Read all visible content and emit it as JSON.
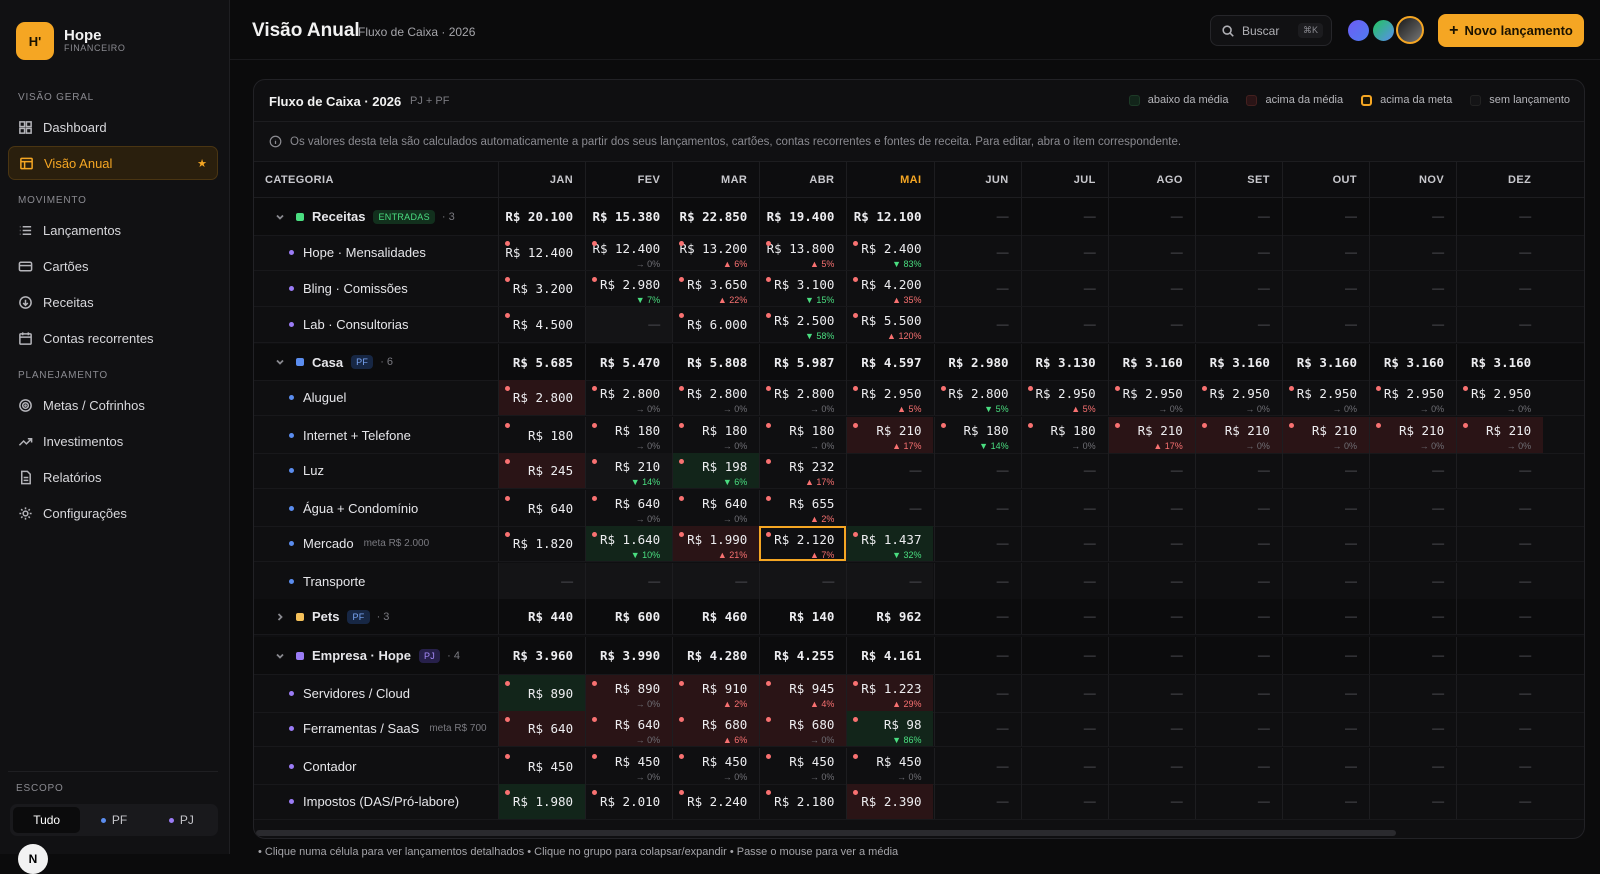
{
  "sidebar": {
    "logo": "H'",
    "brand": "Hope",
    "brand_sub": "FINANCEIRO",
    "sections": {
      "geral": "VISÃO GERAL",
      "movimento": "MOVIMENTO",
      "planejamento": "PLANEJAMENTO"
    },
    "items": {
      "dashboard": "Dashboard",
      "visao": "Visão Anual",
      "lanc": "Lançamentos",
      "cartoes": "Cartões",
      "receitas": "Receitas",
      "contas": "Contas recorrentes",
      "metas": "Metas / Cofrinhos",
      "invest": "Investimentos",
      "relat": "Relatórios",
      "config": "Configurações"
    },
    "scope_label": "ESCOPO",
    "scope": {
      "all": "Tudo",
      "pf": "PF",
      "pj": "PJ"
    },
    "avatar": "N"
  },
  "header": {
    "title": "Visão Anual",
    "subtitle": "Fluxo de Caixa · 2026",
    "search": "Buscar",
    "kbd": "⌘K",
    "new_btn": "Novo lançamento"
  },
  "card": {
    "title": "Fluxo de Caixa · 2026",
    "tag": "PJ + PF",
    "legend": {
      "abaixo": "abaixo da média",
      "acima": "acima da média",
      "meta": "acima da meta",
      "sem": "sem lançamento"
    },
    "info": "Os valores desta tela são calculados automaticamente a partir dos seus lançamentos, cartões, contas recorrentes e fontes de receita. Para editar, abra o item correspondente.",
    "col_cat": "CATEGORIA",
    "months": [
      "JAN",
      "FEV",
      "MAR",
      "ABR",
      "MAI",
      "JUN",
      "JUL",
      "AGO",
      "SET",
      "OUT",
      "NOV",
      "DEZ"
    ]
  },
  "rows": [
    {
      "type": "grp",
      "label": "Receitas",
      "color": "#4ade80",
      "badge": "ENTRADAS",
      "bclass": "b-in",
      "count": "· 3",
      "vals": [
        "R$ 20.100",
        "R$ 15.380",
        "R$ 22.850",
        "R$ 19.400",
        "R$ 12.100",
        "—",
        "—",
        "—",
        "—",
        "—",
        "—",
        "—"
      ]
    },
    {
      "type": "sub",
      "label": "Hope · Mensalidades",
      "color": "#9b7cf6",
      "vals": [
        "R$ 12.400",
        "R$ 12.400",
        "R$ 13.200",
        "R$ 13.800",
        "R$ 2.400"
      ],
      "subs": [
        "",
        "→ 0%",
        "▲ 6%",
        "▲ 5%",
        "▼ 83%"
      ]
    },
    {
      "type": "sub",
      "label": "Bling · Comissões",
      "color": "#9b7cf6",
      "vals": [
        "R$ 3.200",
        "R$ 2.980",
        "R$ 3.650",
        "R$ 3.100",
        "R$ 4.200"
      ],
      "subs": [
        "",
        "▼ 7%",
        "▲ 22%",
        "▼ 15%",
        "▲ 35%"
      ]
    },
    {
      "type": "sub",
      "label": "Lab · Consultorias",
      "color": "#9b7cf6",
      "vals": [
        "R$ 4.500",
        "—",
        "R$ 6.000",
        "R$ 2.500",
        "R$ 5.500"
      ],
      "subs": [
        "",
        "",
        "",
        "▼ 58%",
        "▲ 120%"
      ]
    },
    {
      "type": "grp",
      "label": "Casa",
      "color": "#5b8def",
      "badge": "PF",
      "bclass": "b-pf",
      "count": "· 6",
      "vals": [
        "R$ 5.685",
        "R$ 5.470",
        "R$ 5.808",
        "R$ 5.987",
        "R$ 4.597",
        "R$ 2.980",
        "R$ 3.130",
        "R$ 3.160",
        "R$ 3.160",
        "R$ 3.160",
        "R$ 3.160",
        "R$ 3.160"
      ]
    },
    {
      "type": "sub",
      "label": "Aluguel",
      "color": "#5b8def",
      "vals": [
        "R$ 2.800",
        "R$ 2.800",
        "R$ 2.800",
        "R$ 2.800",
        "R$ 2.950",
        "R$ 2.800",
        "R$ 2.950",
        "R$ 2.950",
        "R$ 2.950",
        "R$ 2.950",
        "R$ 2.950",
        "R$ 2.950"
      ],
      "subs": [
        "",
        "→ 0%",
        "→ 0%",
        "→ 0%",
        "▲ 5%",
        "▼ 5%",
        "▲ 5%",
        "→ 0%",
        "→ 0%",
        "→ 0%",
        "→ 0%",
        "→ 0%"
      ]
    },
    {
      "type": "sub",
      "label": "Internet + Telefone",
      "color": "#5b8def",
      "vals": [
        "R$ 180",
        "R$ 180",
        "R$ 180",
        "R$ 180",
        "R$ 210",
        "R$ 180",
        "R$ 180",
        "R$ 210",
        "R$ 210",
        "R$ 210",
        "R$ 210",
        "R$ 210"
      ],
      "subs": [
        "",
        "→ 0%",
        "→ 0%",
        "→ 0%",
        "▲ 17%",
        "▼ 14%",
        "→ 0%",
        "▲ 17%",
        "→ 0%",
        "→ 0%",
        "→ 0%",
        "→ 0%"
      ]
    },
    {
      "type": "sub",
      "label": "Luz",
      "color": "#5b8def",
      "vals": [
        "R$ 245",
        "R$ 210",
        "R$ 198",
        "R$ 232"
      ],
      "subs": [
        "",
        "▼ 14%",
        "▼ 6%",
        "▲ 17%"
      ]
    },
    {
      "type": "sub",
      "label": "Água + Condomínio",
      "color": "#5b8def",
      "vals": [
        "R$ 640",
        "R$ 640",
        "R$ 640",
        "R$ 655"
      ],
      "subs": [
        "",
        "→ 0%",
        "→ 0%",
        "▲ 2%"
      ]
    },
    {
      "type": "sub",
      "label": "Mercado",
      "color": "#5b8def",
      "meta": "meta R$ 2.000",
      "vals": [
        "R$ 1.820",
        "R$ 1.640",
        "R$ 1.990",
        "R$ 2.120",
        "R$ 1.437"
      ],
      "subs": [
        "",
        "▼ 10%",
        "▲ 21%",
        "▲ 7%",
        "▼ 32%"
      ]
    },
    {
      "type": "sub",
      "label": "Transporte",
      "color": "#5b8def",
      "vals": [
        "—",
        "—",
        "—",
        "—",
        "—"
      ],
      "subs": []
    },
    {
      "type": "grp",
      "label": "Pets",
      "color": "#f5c15a",
      "badge": "PF",
      "bclass": "b-pf",
      "count": "· 3",
      "collapsed": true,
      "vals": [
        "R$ 440",
        "R$ 600",
        "R$ 460",
        "R$ 140",
        "R$ 962",
        "—",
        "—",
        "—",
        "—",
        "—",
        "—",
        "—"
      ]
    },
    {
      "type": "grp",
      "label": "Empresa · Hope",
      "color": "#9b7cf6",
      "badge": "PJ",
      "bclass": "b-pj",
      "count": "· 4",
      "vals": [
        "R$ 3.960",
        "R$ 3.990",
        "R$ 4.280",
        "R$ 4.255",
        "R$ 4.161",
        "—",
        "—",
        "—",
        "—",
        "—",
        "—",
        "—"
      ]
    },
    {
      "type": "sub",
      "label": "Servidores / Cloud",
      "color": "#9b7cf6",
      "vals": [
        "R$ 890",
        "R$ 890",
        "R$ 910",
        "R$ 945",
        "R$ 1.223"
      ],
      "subs": [
        "",
        "→ 0%",
        "▲ 2%",
        "▲ 4%",
        "▲ 29%"
      ]
    },
    {
      "type": "sub",
      "label": "Ferramentas / SaaS",
      "color": "#9b7cf6",
      "meta": "meta R$ 700",
      "vals": [
        "R$ 640",
        "R$ 640",
        "R$ 680",
        "R$ 680",
        "R$ 98"
      ],
      "subs": [
        "",
        "→ 0%",
        "▲ 6%",
        "→ 0%",
        "▼ 86%"
      ]
    },
    {
      "type": "sub",
      "label": "Contador",
      "color": "#9b7cf6",
      "vals": [
        "R$ 450",
        "R$ 450",
        "R$ 450",
        "R$ 450",
        "R$ 450"
      ],
      "subs": [
        "",
        "→ 0%",
        "→ 0%",
        "→ 0%",
        "→ 0%"
      ]
    },
    {
      "type": "sub",
      "label": "Impostos (DAS/Pró-labore)",
      "color": "#9b7cf6",
      "vals": [
        "R$ 1.980",
        "R$ 2.010",
        "R$ 2.240",
        "R$ 2.180",
        "R$ 2.390"
      ],
      "subs": [
        "",
        "",
        "",
        "",
        ""
      ]
    }
  ],
  "footer": "• Clique numa célula para ver lançamentos detalhados  •  Clique no grupo para colapsar/expandir  •  Passe o mouse para ver a média"
}
